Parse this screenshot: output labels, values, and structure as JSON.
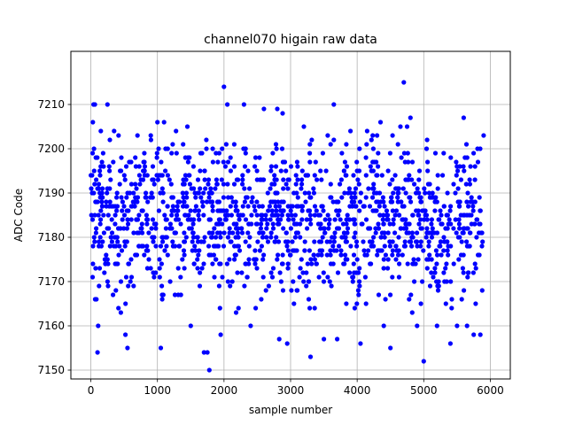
{
  "chart_data": {
    "type": "scatter",
    "title": "channel070 higain raw data",
    "xlabel": "sample number",
    "ylabel": "ADC Code",
    "xlim": [
      -300,
      6300
    ],
    "ylim": [
      7148,
      7222
    ],
    "xticks": [
      0,
      1000,
      2000,
      3000,
      4000,
      5000,
      6000
    ],
    "yticks": [
      7150,
      7160,
      7170,
      7180,
      7190,
      7200,
      7210
    ],
    "grid": true,
    "marker_color": "#0000ff",
    "series": [
      {
        "name": "",
        "note_values": "approximately 6000 samples spread uniformly over x = 0 to 5900; bulk of ADC codes between about 7165 and 7200 with mean near 7184",
        "x": [
          30,
          40,
          60,
          80,
          100,
          110,
          150,
          250,
          350,
          450,
          520,
          550,
          700,
          900,
          1000,
          1050,
          1100,
          1280,
          1450,
          1500,
          1700,
          1750,
          1780,
          1950,
          2000,
          2050,
          2300,
          2400,
          2600,
          2800,
          2830,
          2880,
          2950,
          3200,
          3300,
          3500,
          3650,
          3700,
          3900,
          4050,
          4150,
          4350,
          4400,
          4500,
          4650,
          4700,
          4750,
          4800,
          4900,
          5000,
          5050,
          5200,
          5400,
          5500,
          5600,
          5650,
          5750,
          5850,
          5900
        ],
        "y": [
          7206,
          7210,
          7210,
          7193,
          7154,
          7160,
          7204,
          7210,
          7204,
          7163,
          7158,
          7155,
          7203,
          7203,
          7206,
          7155,
          7206,
          7204,
          7205,
          7160,
          7154,
          7154,
          7150,
          7158,
          7214,
          7210,
          7210,
          7160,
          7209,
          7209,
          7157,
          7208,
          7156,
          7205,
          7153,
          7157,
          7210,
          7157,
          7204,
          7156,
          7204,
          7206,
          7160,
          7155,
          7205,
          7215,
          7205,
          7207,
          7160,
          7152,
          7202,
          7160,
          7156,
          7160,
          7207,
          7160,
          7158,
          7158,
          7203
        ]
      }
    ]
  }
}
